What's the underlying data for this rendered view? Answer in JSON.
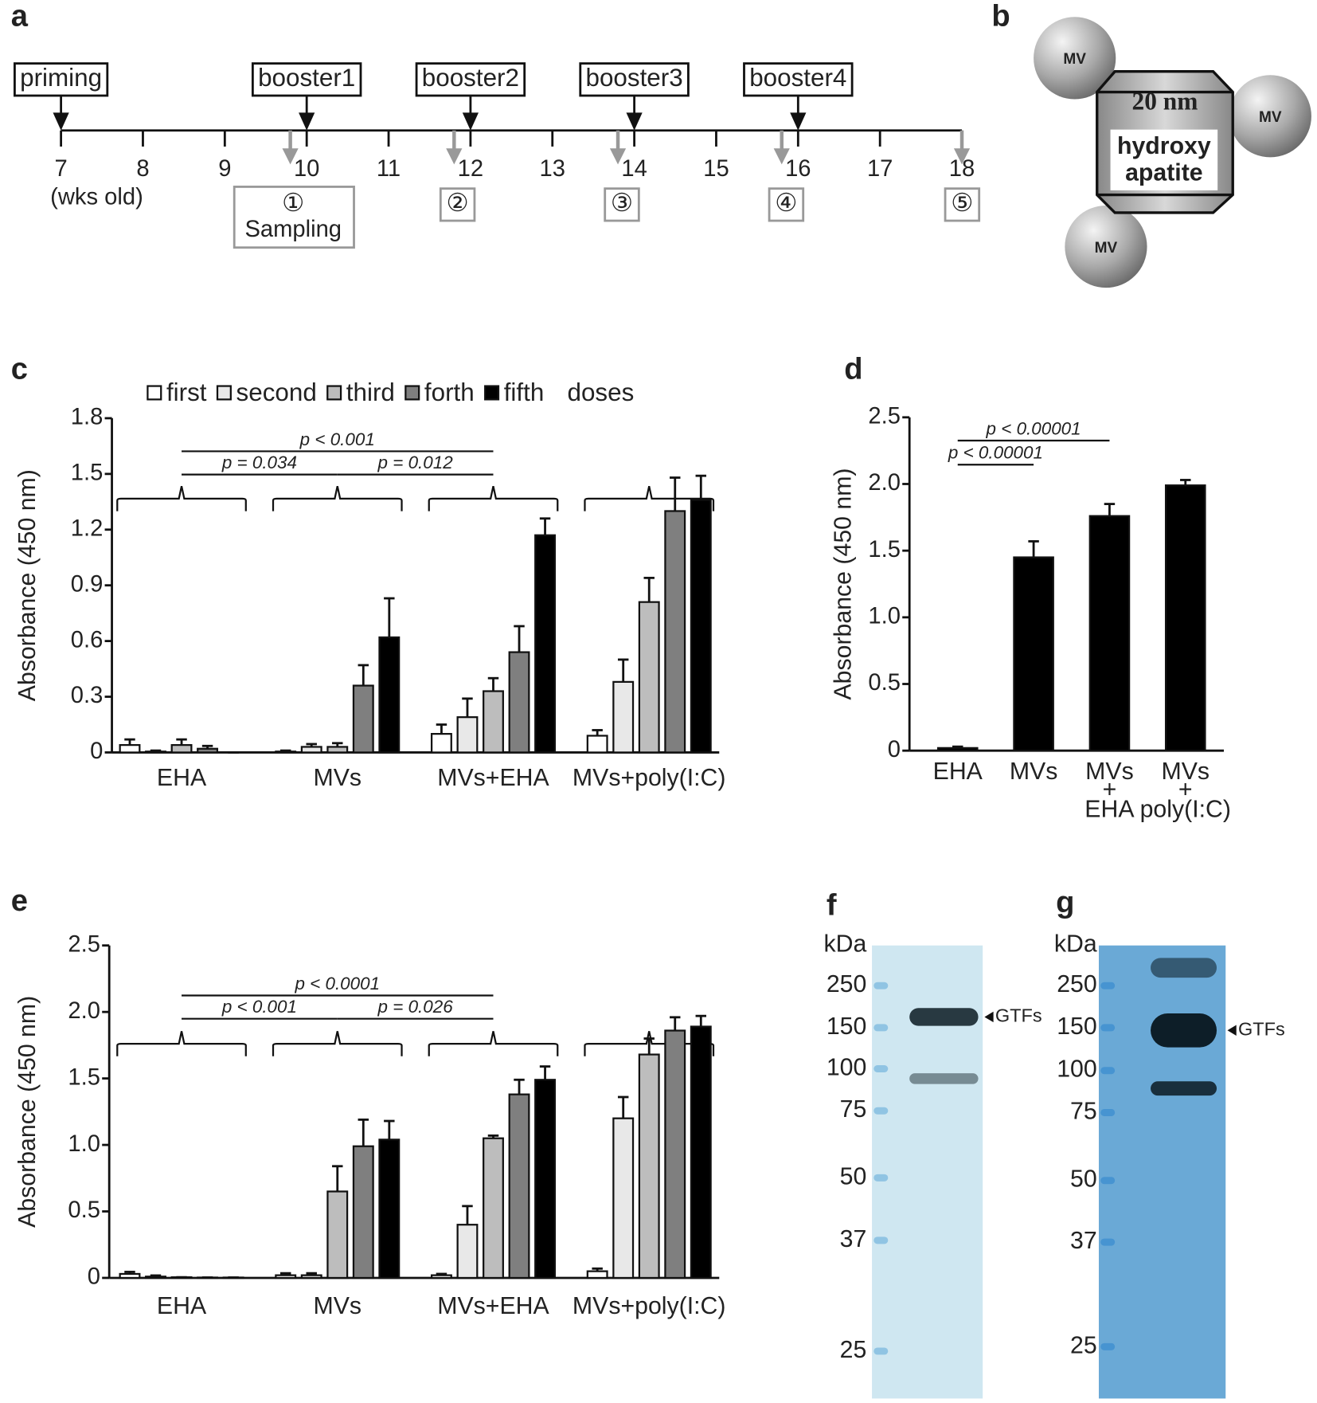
{
  "panel_labels": [
    "a",
    "b",
    "c",
    "d",
    "e",
    "f",
    "g"
  ],
  "timeline": {
    "events": [
      "priming",
      "booster1",
      "booster2",
      "booster3",
      "booster4"
    ],
    "weeks": [
      7,
      8,
      9,
      10,
      11,
      12,
      13,
      14,
      15,
      16,
      17,
      18
    ],
    "unit": "(wks old)",
    "samplings": [
      "①",
      "②",
      "③",
      "④",
      "⑤"
    ],
    "sampling_label": "Sampling"
  },
  "schematic": {
    "particle": "MV",
    "size": "20 nm",
    "core": [
      "hydroxy",
      "apatite"
    ]
  },
  "chart_data": [
    {
      "type": "bar",
      "ylabel": "Absorbance (450 nm)",
      "categories": [
        "EHA",
        "MVs",
        "MVs+EHA",
        "MVs+poly(I:C)"
      ],
      "series": [
        {
          "name": "first",
          "color": "#ffffff",
          "values": [
            0.04,
            0.005,
            0.1,
            0.09
          ],
          "errors": [
            0.03,
            0.005,
            0.05,
            0.03
          ]
        },
        {
          "name": "second",
          "color": "#e8e8e8",
          "values": [
            0.005,
            0.03,
            0.19,
            0.38
          ],
          "errors": [
            0.005,
            0.015,
            0.1,
            0.12
          ]
        },
        {
          "name": "third",
          "color": "#bdbdbd",
          "values": [
            0.04,
            0.03,
            0.33,
            0.81
          ],
          "errors": [
            0.03,
            0.02,
            0.07,
            0.13
          ]
        },
        {
          "name": "forth",
          "color": "#7f7f7f",
          "values": [
            0.02,
            0.36,
            0.54,
            1.3
          ],
          "errors": [
            0.015,
            0.11,
            0.14,
            0.18
          ]
        },
        {
          "name": "fifth",
          "color": "#000000",
          "values": [
            0,
            0.62,
            1.17,
            1.36
          ],
          "errors": [
            0,
            0.21,
            0.09,
            0.13
          ]
        }
      ],
      "legend_suffix": "doses",
      "ylim": [
        0,
        1.8
      ],
      "yticks": [
        0,
        0.3,
        0.6,
        0.9,
        1.2,
        1.5,
        1.8
      ],
      "annotations": [
        "p < 0.001",
        "p = 0.034",
        "p = 0.012"
      ]
    },
    {
      "type": "bar",
      "ylabel": "Absorbance (450 nm)",
      "categories": [
        [
          "EHA"
        ],
        [
          "MVs"
        ],
        [
          "MVs",
          "+",
          "EHA"
        ],
        [
          "MVs",
          "+",
          "poly(I:C)"
        ]
      ],
      "color": "#000000",
      "values": [
        0.02,
        1.45,
        1.76,
        1.99
      ],
      "errors": [
        0.01,
        0.12,
        0.09,
        0.04
      ],
      "ylim": [
        0,
        2.5
      ],
      "yticks": [
        0,
        0.5,
        {
          "value": 1,
          "label": "1.0"
        },
        1.5,
        {
          "value": 2,
          "label": "2.0"
        },
        2.5
      ],
      "annotations": [
        "p < 0.00001",
        "p < 0.00001"
      ]
    },
    {
      "type": "bar",
      "ylabel": "Absorbance (450 nm)",
      "categories": [
        "EHA",
        "MVs",
        "MVs+EHA",
        "MVs+poly(I:C)"
      ],
      "series": [
        {
          "name": "first",
          "color": "#ffffff",
          "values": [
            0.03,
            0.02,
            0.02,
            0.05
          ],
          "errors": [
            0.015,
            0.015,
            0.01,
            0.02
          ]
        },
        {
          "name": "second",
          "color": "#e8e8e8",
          "values": [
            0.01,
            0.02,
            0.4,
            1.2
          ],
          "errors": [
            0.008,
            0.015,
            0.14,
            0.16
          ]
        },
        {
          "name": "third",
          "color": "#bdbdbd",
          "values": [
            0.005,
            0.65,
            1.05,
            1.68
          ],
          "errors": [
            0,
            0.19,
            0.02,
            0.12
          ]
        },
        {
          "name": "forth",
          "color": "#7f7f7f",
          "values": [
            0.003,
            0.99,
            1.38,
            1.86
          ],
          "errors": [
            0,
            0.2,
            0.11,
            0.1
          ]
        },
        {
          "name": "fifth",
          "color": "#000000",
          "values": [
            0.003,
            1.04,
            1.49,
            1.89
          ],
          "errors": [
            0,
            0.14,
            0.1,
            0.08
          ]
        }
      ],
      "ylim": [
        0,
        2.5
      ],
      "yticks": [
        0,
        0.5,
        {
          "value": 1,
          "label": "1.0"
        },
        1.5,
        {
          "value": 2,
          "label": "2.0"
        },
        2.5
      ],
      "annotations": [
        "p < 0.0001",
        "p < 0.001",
        "p = 0.026"
      ]
    }
  ],
  "blots": [
    {
      "unit": "kDa",
      "markers": [
        "250",
        "150",
        "100",
        "75",
        "50",
        "37",
        "25"
      ],
      "band_label": "GTFs"
    },
    {
      "unit": "kDa",
      "markers": [
        "250",
        "150",
        "100",
        "75",
        "50",
        "37",
        "25"
      ],
      "band_label": "GTFs"
    }
  ]
}
